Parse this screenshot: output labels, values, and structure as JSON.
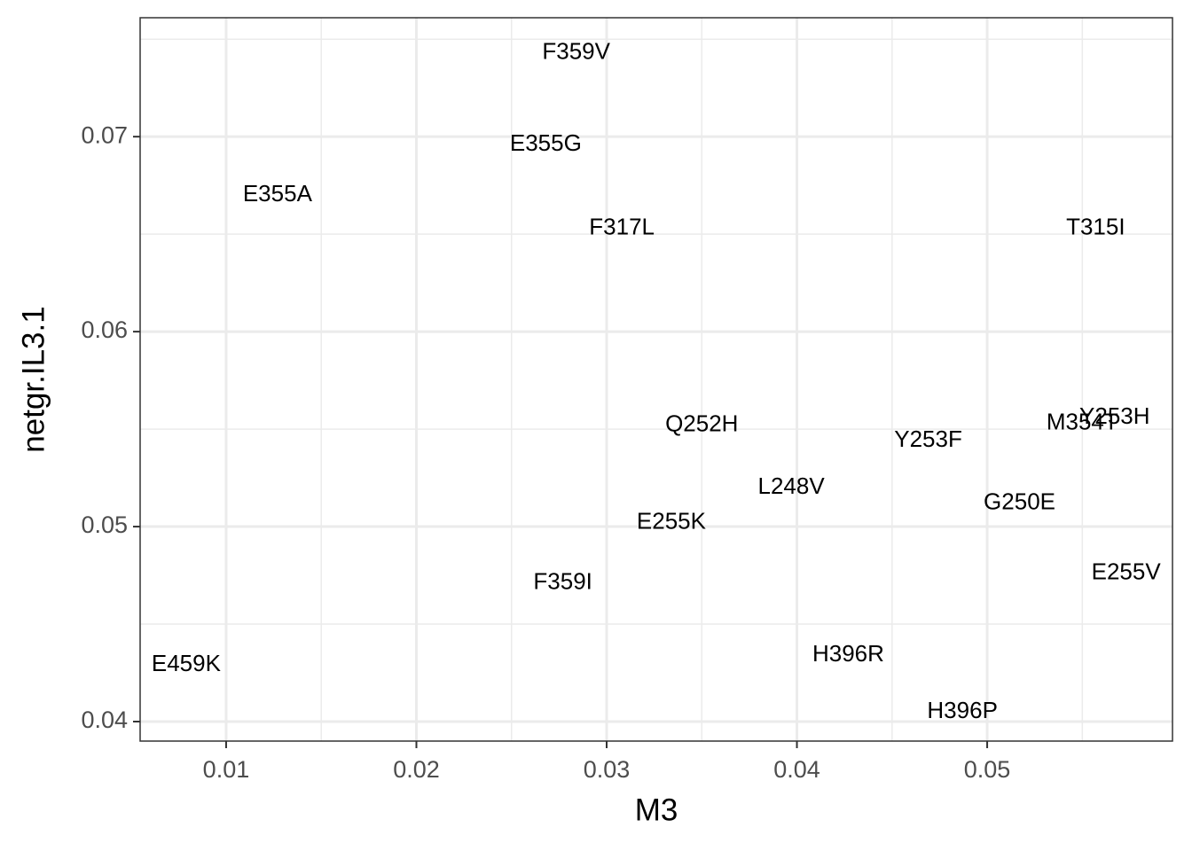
{
  "chart_data": {
    "type": "scatter",
    "x_label": "M3",
    "y_label": "netgr.IL3.1",
    "labels": [
      "F359V",
      "E355G",
      "E355A",
      "F317L",
      "T315I",
      "Q252H",
      "Y253F",
      "M354T",
      "Y253H",
      "L248V",
      "G250E",
      "E255K",
      "E255V",
      "F359I",
      "H396R",
      "E459K",
      "H396P"
    ],
    "x": [
      0.0284,
      0.0268,
      0.0127,
      0.0308,
      0.0557,
      0.035,
      0.0469,
      0.055,
      0.0567,
      0.0397,
      0.0517,
      0.0334,
      0.0573,
      0.0277,
      0.0427,
      0.0079,
      0.0487
    ],
    "y": [
      0.0743,
      0.0696,
      0.067,
      0.0653,
      0.0653,
      0.0552,
      0.0544,
      0.0553,
      0.0556,
      0.052,
      0.0512,
      0.0502,
      0.0476,
      0.0471,
      0.0434,
      0.0429,
      0.0405
    ],
    "xlim": [
      0.00548,
      0.05974
    ],
    "ylim": [
      0.039,
      0.0761
    ],
    "xticks": [
      0.01,
      0.02,
      0.03,
      0.04,
      0.05
    ],
    "yticks": [
      0.04,
      0.05,
      0.06,
      0.07
    ],
    "grid": true,
    "color": "#000000"
  }
}
